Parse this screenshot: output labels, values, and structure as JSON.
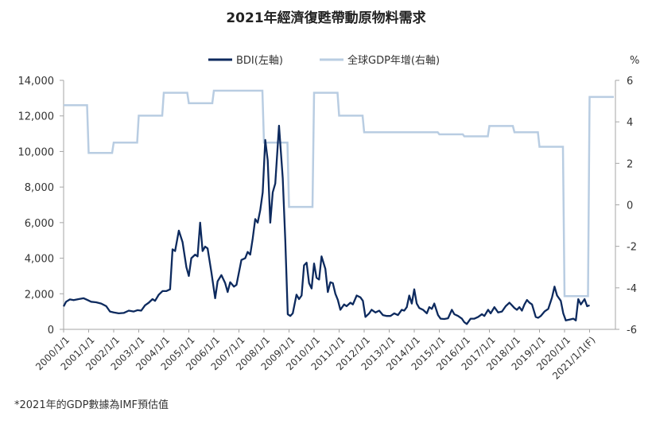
{
  "chart_data": {
    "type": "line",
    "title": "2021年經濟復甦帶動原物料需求",
    "footnote": "*2021年的GDP數據為IMF預估值",
    "legend": [
      "BDI(左軸)",
      "全球GDP年增(右軸)"
    ],
    "legend_position": "top-center",
    "right_unit": "%",
    "y_left": {
      "range": [
        0,
        14000
      ],
      "ticks": [
        "0",
        "2,000",
        "4,000",
        "6,000",
        "8,000",
        "10,000",
        "12,000",
        "14,000"
      ]
    },
    "y_right": {
      "range": [
        -6,
        6
      ],
      "ticks": [
        "-6",
        "-4",
        "-2",
        "0",
        "2",
        "4",
        "6"
      ]
    },
    "x_range": [
      2000,
      2022
    ],
    "x_ticks": [
      "2000/1/1",
      "2001/1/1",
      "2002/1/1",
      "2003/1/1",
      "2004/1/1",
      "2005/1/1",
      "2006/1/1",
      "2007/1/1",
      "2008/1/1",
      "2009/1/1",
      "2010/1/1",
      "2011/1/1",
      "2012/1/1",
      "2013/1/1",
      "2014/1/1",
      "2015/1/1",
      "2016/1/1",
      "2017/1/1",
      "2018/1/1",
      "2019/1/1",
      "2020/1/1",
      "2021/1/1(F)"
    ],
    "colors": {
      "bdi": "#0d2a5e",
      "gdp": "#b9cde2",
      "axis": "#a6a6a6"
    },
    "series": [
      {
        "name": "BDI(左軸)",
        "axis": "left",
        "points": [
          [
            2000.0,
            1290
          ],
          [
            2000.1,
            1550
          ],
          [
            2000.25,
            1680
          ],
          [
            2000.4,
            1640
          ],
          [
            2000.6,
            1700
          ],
          [
            2000.8,
            1750
          ],
          [
            2000.95,
            1650
          ],
          [
            2001.1,
            1550
          ],
          [
            2001.3,
            1520
          ],
          [
            2001.5,
            1450
          ],
          [
            2001.7,
            1300
          ],
          [
            2001.85,
            1000
          ],
          [
            2002.0,
            950
          ],
          [
            2002.2,
            900
          ],
          [
            2002.4,
            920
          ],
          [
            2002.6,
            1050
          ],
          [
            2002.8,
            1000
          ],
          [
            2002.95,
            1080
          ],
          [
            2003.1,
            1050
          ],
          [
            2003.25,
            1350
          ],
          [
            2003.4,
            1500
          ],
          [
            2003.55,
            1700
          ],
          [
            2003.65,
            1600
          ],
          [
            2003.8,
            1950
          ],
          [
            2003.95,
            2150
          ],
          [
            2004.1,
            2150
          ],
          [
            2004.25,
            2250
          ],
          [
            2004.35,
            4500
          ],
          [
            2004.45,
            4400
          ],
          [
            2004.6,
            5550
          ],
          [
            2004.75,
            4900
          ],
          [
            2004.9,
            3500
          ],
          [
            2005.0,
            3000
          ],
          [
            2005.1,
            4000
          ],
          [
            2005.25,
            4200
          ],
          [
            2005.35,
            4100
          ],
          [
            2005.45,
            6000
          ],
          [
            2005.55,
            4400
          ],
          [
            2005.65,
            4650
          ],
          [
            2005.75,
            4550
          ],
          [
            2005.9,
            3200
          ],
          [
            2006.05,
            1750
          ],
          [
            2006.15,
            2700
          ],
          [
            2006.3,
            3050
          ],
          [
            2006.45,
            2600
          ],
          [
            2006.55,
            2100
          ],
          [
            2006.65,
            2650
          ],
          [
            2006.8,
            2400
          ],
          [
            2006.9,
            2500
          ],
          [
            2007.0,
            3200
          ],
          [
            2007.1,
            3900
          ],
          [
            2007.25,
            4000
          ],
          [
            2007.35,
            4350
          ],
          [
            2007.45,
            4200
          ],
          [
            2007.55,
            5100
          ],
          [
            2007.65,
            6200
          ],
          [
            2007.75,
            6000
          ],
          [
            2007.85,
            6700
          ],
          [
            2007.95,
            7700
          ],
          [
            2008.05,
            10650
          ],
          [
            2008.15,
            9500
          ],
          [
            2008.25,
            6000
          ],
          [
            2008.35,
            7700
          ],
          [
            2008.45,
            8200
          ],
          [
            2008.6,
            11450
          ],
          [
            2008.75,
            8500
          ],
          [
            2008.85,
            5000
          ],
          [
            2008.95,
            850
          ],
          [
            2009.05,
            750
          ],
          [
            2009.15,
            900
          ],
          [
            2009.3,
            1950
          ],
          [
            2009.4,
            1700
          ],
          [
            2009.5,
            1900
          ],
          [
            2009.6,
            3600
          ],
          [
            2009.7,
            3750
          ],
          [
            2009.8,
            2600
          ],
          [
            2009.9,
            2300
          ],
          [
            2010.0,
            3700
          ],
          [
            2010.1,
            2900
          ],
          [
            2010.2,
            2800
          ],
          [
            2010.3,
            4100
          ],
          [
            2010.45,
            3400
          ],
          [
            2010.55,
            2100
          ],
          [
            2010.65,
            2650
          ],
          [
            2010.75,
            2600
          ],
          [
            2010.85,
            2000
          ],
          [
            2010.95,
            1650
          ],
          [
            2011.05,
            1100
          ],
          [
            2011.2,
            1400
          ],
          [
            2011.3,
            1300
          ],
          [
            2011.45,
            1500
          ],
          [
            2011.55,
            1400
          ],
          [
            2011.7,
            1900
          ],
          [
            2011.85,
            1800
          ],
          [
            2011.95,
            1600
          ],
          [
            2012.05,
            700
          ],
          [
            2012.2,
            900
          ],
          [
            2012.3,
            1100
          ],
          [
            2012.45,
            950
          ],
          [
            2012.6,
            1050
          ],
          [
            2012.75,
            800
          ],
          [
            2012.9,
            750
          ],
          [
            2013.05,
            750
          ],
          [
            2013.2,
            900
          ],
          [
            2013.35,
            800
          ],
          [
            2013.5,
            1100
          ],
          [
            2013.6,
            1050
          ],
          [
            2013.7,
            1250
          ],
          [
            2013.8,
            1900
          ],
          [
            2013.9,
            1450
          ],
          [
            2014.0,
            2250
          ],
          [
            2014.1,
            1450
          ],
          [
            2014.2,
            1200
          ],
          [
            2014.35,
            1100
          ],
          [
            2014.5,
            900
          ],
          [
            2014.6,
            1250
          ],
          [
            2014.7,
            1150
          ],
          [
            2014.8,
            1450
          ],
          [
            2014.95,
            800
          ],
          [
            2015.05,
            600
          ],
          [
            2015.2,
            580
          ],
          [
            2015.35,
            620
          ],
          [
            2015.5,
            1100
          ],
          [
            2015.6,
            850
          ],
          [
            2015.75,
            750
          ],
          [
            2015.9,
            600
          ],
          [
            2016.0,
            400
          ],
          [
            2016.1,
            300
          ],
          [
            2016.25,
            600
          ],
          [
            2016.4,
            600
          ],
          [
            2016.55,
            700
          ],
          [
            2016.7,
            850
          ],
          [
            2016.8,
            750
          ],
          [
            2016.95,
            1100
          ],
          [
            2017.05,
            900
          ],
          [
            2017.2,
            1250
          ],
          [
            2017.35,
            950
          ],
          [
            2017.5,
            1000
          ],
          [
            2017.65,
            1300
          ],
          [
            2017.8,
            1500
          ],
          [
            2017.9,
            1350
          ],
          [
            2018.0,
            1200
          ],
          [
            2018.1,
            1100
          ],
          [
            2018.2,
            1250
          ],
          [
            2018.3,
            1050
          ],
          [
            2018.4,
            1400
          ],
          [
            2018.5,
            1650
          ],
          [
            2018.6,
            1500
          ],
          [
            2018.7,
            1400
          ],
          [
            2018.85,
            700
          ],
          [
            2018.95,
            650
          ],
          [
            2019.05,
            750
          ],
          [
            2019.2,
            1000
          ],
          [
            2019.35,
            1150
          ],
          [
            2019.5,
            1800
          ],
          [
            2019.6,
            2400
          ],
          [
            2019.7,
            1900
          ],
          [
            2019.85,
            1600
          ],
          [
            2019.95,
            900
          ],
          [
            2020.05,
            500
          ],
          [
            2020.2,
            550
          ],
          [
            2020.35,
            600
          ],
          [
            2020.45,
            500
          ],
          [
            2020.55,
            1700
          ],
          [
            2020.65,
            1400
          ],
          [
            2020.8,
            1700
          ],
          [
            2020.9,
            1300
          ],
          [
            2021.0,
            1350
          ]
        ]
      },
      {
        "name": "全球GDP年增(右軸)",
        "axis": "right",
        "annual": [
          [
            2000,
            4.8
          ],
          [
            2001,
            2.5
          ],
          [
            2002,
            3.0
          ],
          [
            2003,
            4.3
          ],
          [
            2004,
            5.4
          ],
          [
            2005,
            4.9
          ],
          [
            2006,
            5.5
          ],
          [
            2007,
            5.5
          ],
          [
            2008,
            3.0
          ],
          [
            2009,
            -0.1
          ],
          [
            2010,
            5.4
          ],
          [
            2011,
            4.3
          ],
          [
            2012,
            3.5
          ],
          [
            2013,
            3.5
          ],
          [
            2014,
            3.5
          ],
          [
            2015,
            3.4
          ],
          [
            2016,
            3.3
          ],
          [
            2017,
            3.8
          ],
          [
            2018,
            3.5
          ],
          [
            2019,
            2.8
          ],
          [
            2020,
            -4.4
          ],
          [
            2021,
            5.2
          ]
        ]
      }
    ]
  }
}
